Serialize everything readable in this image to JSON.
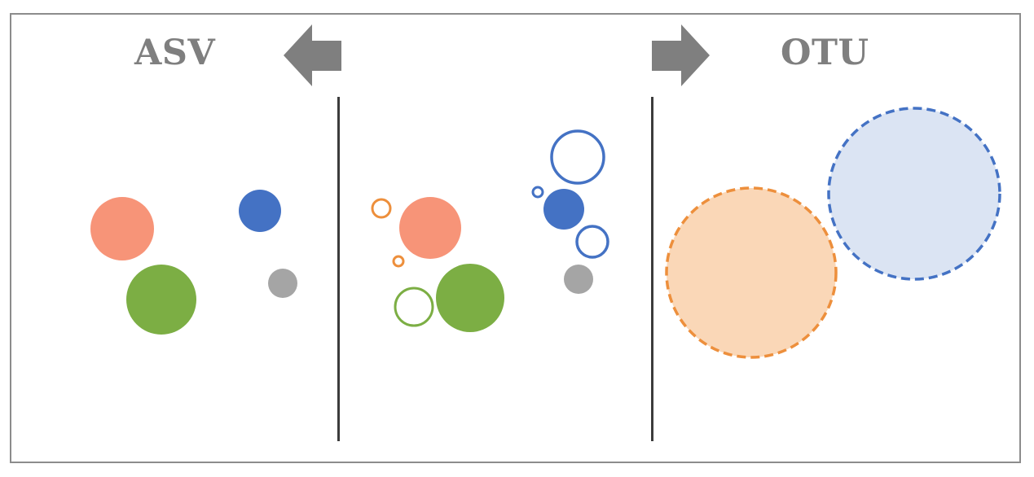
{
  "diagram": {
    "left_label": "ASV",
    "right_label": "OTU",
    "arrows": {
      "left": "arrow-left-icon",
      "right": "arrow-right-icon",
      "color": "#7f7f7f"
    },
    "colors": {
      "salmon": "#f79478",
      "green": "#7cae44",
      "blue": "#4472c4",
      "gray": "#a5a5a5",
      "orange": "#ed8f3c",
      "peach_fill": "#fad7b7",
      "light_blue_fill": "#dbe4f3",
      "frame": "#8c8c8c",
      "divider": "#3c3c3c"
    }
  }
}
